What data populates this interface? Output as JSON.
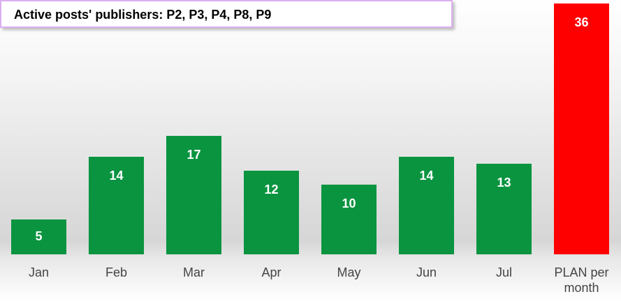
{
  "chart_data": {
    "type": "bar",
    "title": "Active posts' publishers: P2, P3, P4, P8, P9",
    "categories": [
      "Jan",
      "Feb",
      "Mar",
      "Apr",
      "May",
      "Jun",
      "Jul",
      "PLAN per month"
    ],
    "values": [
      5,
      14,
      17,
      12,
      10,
      14,
      13,
      36
    ],
    "colors": [
      "#0a9440",
      "#0a9440",
      "#0a9440",
      "#0a9440",
      "#0a9440",
      "#0a9440",
      "#0a9440",
      "#ff0000"
    ],
    "ylim": [
      0,
      36
    ]
  }
}
